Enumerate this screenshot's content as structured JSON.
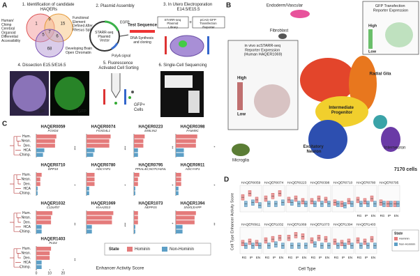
{
  "panel_a": {
    "letter": "A",
    "steps": [
      "1. Identification of candidate HAQERs",
      "2. Plasmid Assembly",
      "3. In Utero Electroporation E14.5/E15.5",
      "4. Dissection E15.5/E16.5",
      "5. Fluorescence Activated Cell Sorting",
      "6. Single-Cell Sequencing"
    ],
    "venn": {
      "left_label": "Human/ Chimp Cerebral Organoid Differential Accessibility",
      "right_label": "Functional Element Defined After Rhesus Split",
      "bottom_label": "Developing Brain Open Chromatin",
      "counts": [
        1,
        9,
        5,
        15,
        7,
        6,
        68
      ]
    },
    "plasmid": {
      "vector": "STARR-seq Plasmid Vector",
      "egfp": "EGFP",
      "polya": "PolyA signal",
      "test": "Test Sequence",
      "synthesis": "DNA Synthesis and cloning"
    },
    "electroporation": {
      "library": "STARR-seq Plasmid Library",
      "plus": "+",
      "reporter": "pCAG-GFP Transfection Reporter"
    },
    "dissection": {
      "bf": "BF",
      "gfp": "GFP"
    },
    "facs": {
      "cells": "GFP+ Cells"
    }
  },
  "panel_b": {
    "letter": "B",
    "clusters": [
      "Endoderm/Vascular",
      "Fibroblast",
      "Radial Glia",
      "Intermediate Progenitor",
      "Excitatory Neuron",
      "Interneuron",
      "Microglia"
    ],
    "cell_count": "7170 cells",
    "inset_starr": {
      "title": "in vivo scSTARR-seq Reporter Expression (Human HAQER1069)",
      "high": "High",
      "low": "Low"
    },
    "inset_gfp": {
      "title": "GFP Transfection Reporter Expression",
      "high": "High",
      "low": "Low"
    }
  },
  "panel_c": {
    "letter": "C",
    "species": [
      "Hum.",
      "Nean.",
      "Den.",
      "HCA",
      "Chimp."
    ],
    "xlabel": "Enhancer Activity Score",
    "xlim": [
      0,
      25
    ],
    "xticks": [
      0,
      10,
      20
    ],
    "legend_title": "State",
    "legend": [
      "Hominin",
      "Non-Hominin"
    ],
    "colors": [
      "#e47b7b",
      "#5d9fc6"
    ],
    "plots": [
      {
        "name": "HAQER0059",
        "gene": "FOXD4",
        "values": [
          15,
          14,
          14,
          6,
          5
        ],
        "sig": "***"
      },
      {
        "name": "HAQER0074",
        "gene": "FOXD4L1",
        "values": [
          18,
          17,
          17,
          6,
          5
        ],
        "sig": "***"
      },
      {
        "name": "HAQER0223",
        "gene": "EMILIN2",
        "values": [
          8,
          7,
          7,
          3,
          3
        ],
        "sig": "**"
      },
      {
        "name": "HAQER0398",
        "gene": "FAM49C",
        "values": [
          16,
          15,
          15,
          6,
          6
        ],
        "sig": "*"
      },
      {
        "name": "HAQER0710",
        "gene": "DPP10",
        "values": [
          4,
          3,
          3,
          1,
          1
        ],
        "sig": "*"
      },
      {
        "name": "HAQER0780",
        "gene": "ADCYAP1",
        "values": [
          6,
          6,
          6,
          2,
          2
        ],
        "sig": "*"
      },
      {
        "name": "HAQER0795",
        "gene": "PPIAL4G;NOTCH2NL",
        "values": [
          4,
          3,
          3,
          1,
          1
        ],
        "sig": "*"
      },
      {
        "name": "HAQER0911",
        "gene": "ADCYAP1",
        "values": [
          4,
          4,
          4,
          2,
          2
        ],
        "sig": "*"
      },
      {
        "name": "HAQER1032",
        "gene": "C12orf57",
        "values": [
          12,
          11,
          11,
          4,
          4
        ],
        "sig": "**"
      },
      {
        "name": "HAQER1069",
        "gene": "KIAA2013",
        "values": [
          20,
          19,
          19,
          4,
          4
        ],
        "sig": "***"
      },
      {
        "name": "HAQER1073",
        "gene": "NEPP15",
        "values": [
          3,
          3,
          3,
          1,
          1
        ],
        "sig": "*"
      },
      {
        "name": "HAQER1394",
        "gene": "SNX5;EAPP",
        "values": [
          15,
          14,
          14,
          5,
          5
        ],
        "sig": "**"
      },
      {
        "name": "HAQER1403",
        "gene": "PLD4",
        "values": [
          11,
          10,
          10,
          4,
          4
        ],
        "sig": "**"
      }
    ]
  },
  "panel_d": {
    "letter": "D",
    "ylabel": "Cell Type Enhancer Activity Score",
    "xlabel": "Cell Type",
    "cell_types": [
      "RG",
      "IP",
      "EN"
    ],
    "ylim": [
      0,
      1
    ],
    "legend_title": "State",
    "legend": [
      "Hominin",
      "Non-Hominin"
    ],
    "plots": [
      {
        "name": "HAQER0059",
        "hominin": [
          0.55,
          0.7,
          0.45
        ],
        "non_hominin": [
          0.3,
          0.35,
          0.25
        ]
      },
      {
        "name": "HAQER0074",
        "hominin": [
          0.5,
          0.6,
          0.7
        ],
        "non_hominin": [
          0.3,
          0.3,
          0.35
        ]
      },
      {
        "name": "HAQER0223",
        "hominin": [
          0.45,
          0.5,
          0.4
        ],
        "non_hominin": [
          0.35,
          0.3,
          0.3
        ]
      },
      {
        "name": "HAQER0398",
        "hominin": [
          0.4,
          0.5,
          0.45
        ],
        "non_hominin": [
          0.3,
          0.3,
          0.3
        ]
      },
      {
        "name": "HAQER0710",
        "hominin": [
          0.35,
          0.3,
          0.4
        ],
        "non_hominin": [
          0.3,
          0.25,
          0.3
        ]
      },
      {
        "name": "HAQER0780",
        "hominin": [
          0.45,
          0.4,
          0.5
        ],
        "non_hominin": [
          0.3,
          0.3,
          0.3
        ]
      },
      {
        "name": "HAQER0795",
        "hominin": [
          0.35,
          0.3,
          0.3
        ],
        "non_hominin": [
          0.3,
          0.3,
          0.3
        ]
      },
      {
        "name": "HAQER0911",
        "hominin": [
          0.4,
          0.45,
          0.4
        ],
        "non_hominin": [
          0.3,
          0.3,
          0.3
        ]
      },
      {
        "name": "HAQER1032",
        "hominin": [
          0.5,
          0.55,
          0.6
        ],
        "non_hominin": [
          0.3,
          0.35,
          0.3
        ]
      },
      {
        "name": "HAQER1069",
        "hominin": [
          0.6,
          0.7,
          0.65
        ],
        "non_hominin": [
          0.3,
          0.3,
          0.3
        ]
      },
      {
        "name": "HAQER1073",
        "hominin": [
          0.5,
          0.6,
          0.55
        ],
        "non_hominin": [
          0.35,
          0.3,
          0.3
        ]
      },
      {
        "name": "HAQER1394",
        "hominin": [
          0.45,
          0.4,
          0.45
        ],
        "non_hominin": [
          0.3,
          0.3,
          0.3
        ]
      },
      {
        "name": "HAQER1403",
        "hominin": [
          0.5,
          0.45,
          0.55
        ],
        "non_hominin": [
          0.3,
          0.3,
          0.3
        ]
      }
    ]
  }
}
